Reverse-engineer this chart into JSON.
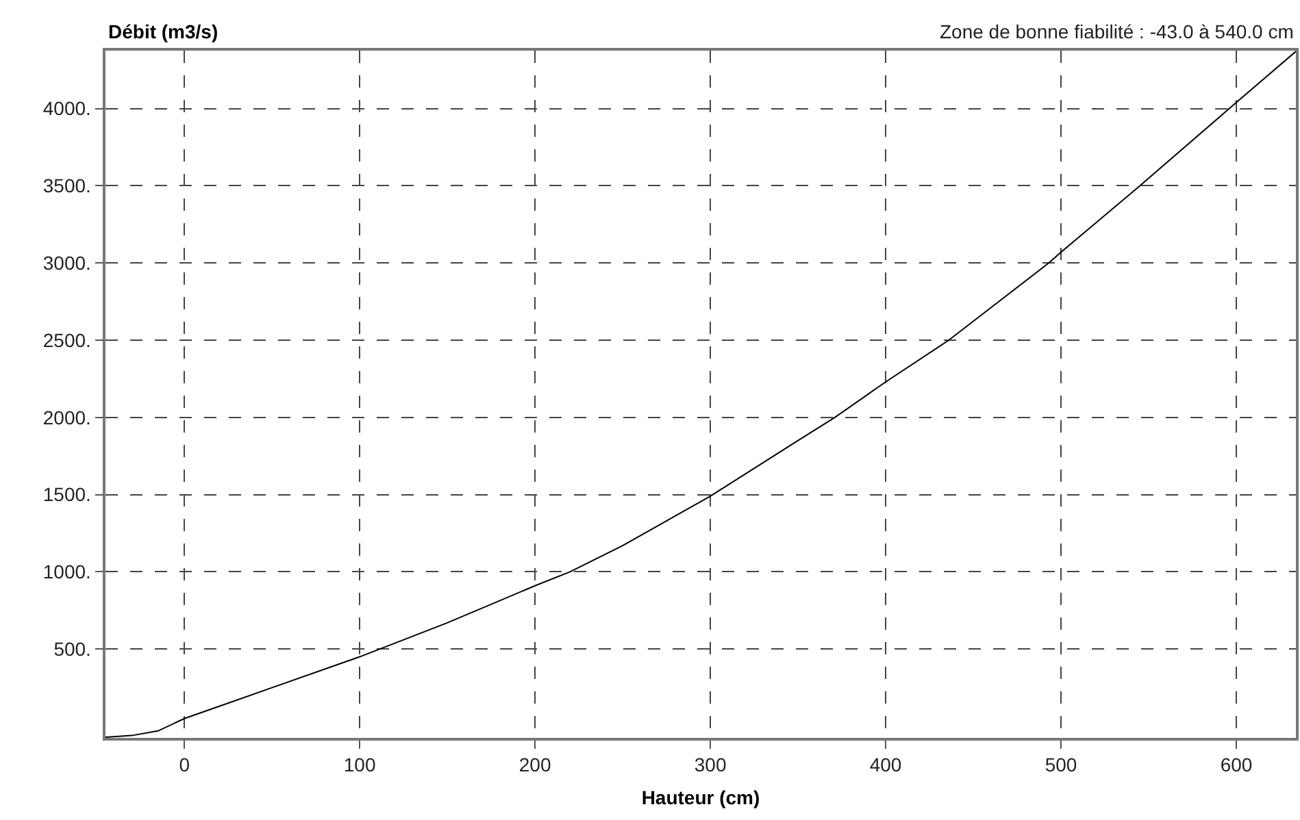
{
  "chart_data": {
    "type": "line",
    "xlabel": "Hauteur (cm)",
    "ylabel": "Débit (m3/s)",
    "annotations": [
      "Zone de bonne fiabilité : -43.0 à 540.0 cm"
    ],
    "x": [
      -45,
      -30,
      -15,
      0,
      25,
      50,
      100,
      150,
      200,
      220,
      250,
      300,
      350,
      371,
      400,
      436,
      493,
      500,
      545,
      596,
      634
    ],
    "series": [
      {
        "color": "#000000",
        "values": [
          -70,
          -60,
          -30,
          50,
          150,
          250,
          450,
          670,
          910,
          1000,
          1170,
          1490,
          1850,
          2000,
          2230,
          2500,
          3000,
          3070,
          3500,
          4000,
          4370
        ]
      }
    ],
    "xlim": [
      -45,
      634
    ],
    "ylim": [
      -75,
      4375
    ],
    "xticks": [
      0,
      100,
      200,
      300,
      400,
      500,
      600
    ],
    "yticks": [
      {
        "value": 500,
        "label": "500."
      },
      {
        "value": 1000,
        "label": "1000."
      },
      {
        "value": 1500,
        "label": "1500."
      },
      {
        "value": 2000,
        "label": "2000."
      },
      {
        "value": 2500,
        "label": "2500."
      },
      {
        "value": 3000,
        "label": "3000."
      },
      {
        "value": 3500,
        "label": "3500."
      },
      {
        "value": 4000,
        "label": "4000."
      }
    ],
    "grid": true,
    "marker": "none",
    "line_style": "solid"
  }
}
